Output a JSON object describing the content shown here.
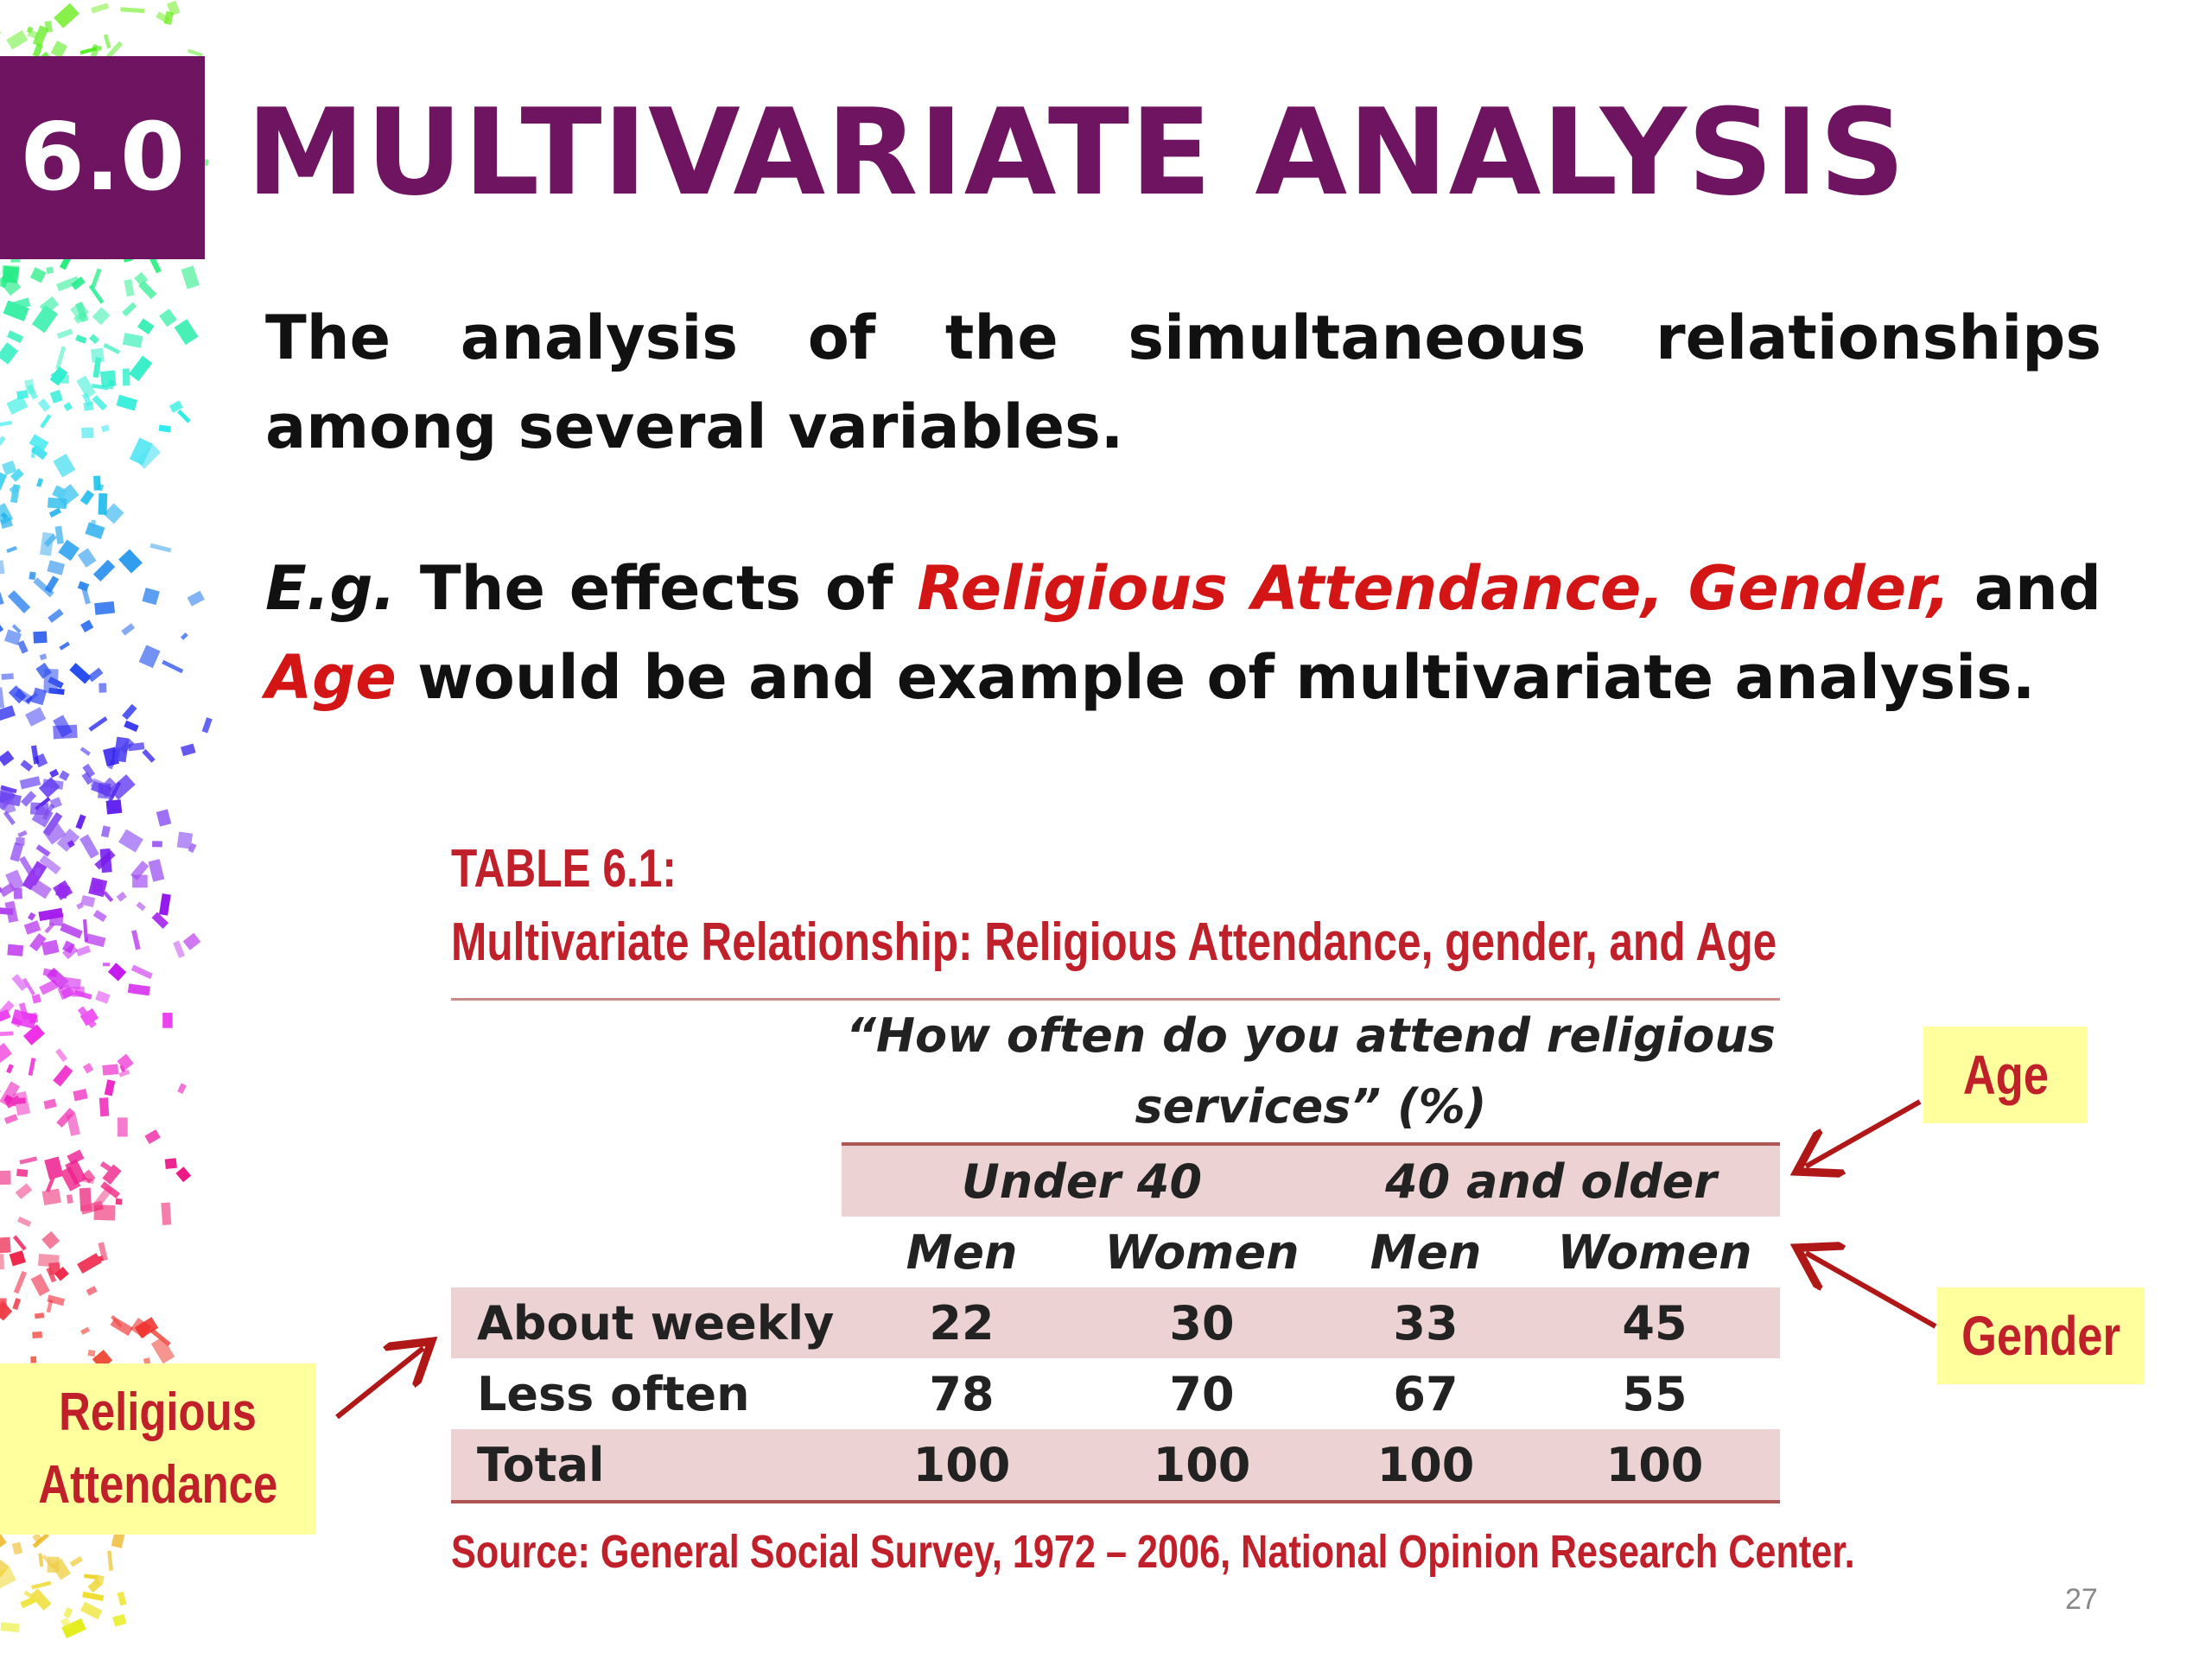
{
  "slide": {
    "section_number": "6.0",
    "title": "MULTIVARIATE ANALYSIS",
    "definition": "The analysis of the simultaneous relationships among several variables.",
    "example": {
      "prefix": "E.g.",
      "text1": " The effects of ",
      "highlight1": "Religious Attendance, Gender,",
      "text2": " and ",
      "highlight2": "Age",
      "text3": " would be and example of multivariate analysis."
    },
    "page_number": "27"
  },
  "table": {
    "caption_line1": "TABLE 6.1:",
    "caption_line2": "Multivariate Relationship: Religious Attendance, gender, and Age",
    "question_line1": "“How often do you attend religious",
    "question_line2": "services” (%)",
    "groups": [
      "Under 40",
      "40 and older"
    ],
    "genders": [
      "Men",
      "Women",
      "Men",
      "Women"
    ],
    "rows": [
      {
        "label": "About weekly",
        "values": [
          "22",
          "30",
          "33",
          "45"
        ]
      },
      {
        "label": "Less often",
        "values": [
          "78",
          "70",
          "67",
          "55"
        ]
      },
      {
        "label": "Total",
        "values": [
          "100",
          "100",
          "100",
          "100"
        ]
      }
    ],
    "source": "Source: General Social Survey, 1972 – 2006, National Opinion Research Center."
  },
  "callouts": {
    "age": "Age",
    "gender": "Gender",
    "religious_line1": "Religious",
    "religious_line2": "Attendance"
  },
  "colors": {
    "brand_purple": "#6e1460",
    "highlight_red": "#d41515",
    "caption_red": "#c0202a",
    "table_shade": "#ecd2d2",
    "header_blue": "#1f3e8a",
    "callout_yellow": "#ffff9e"
  }
}
